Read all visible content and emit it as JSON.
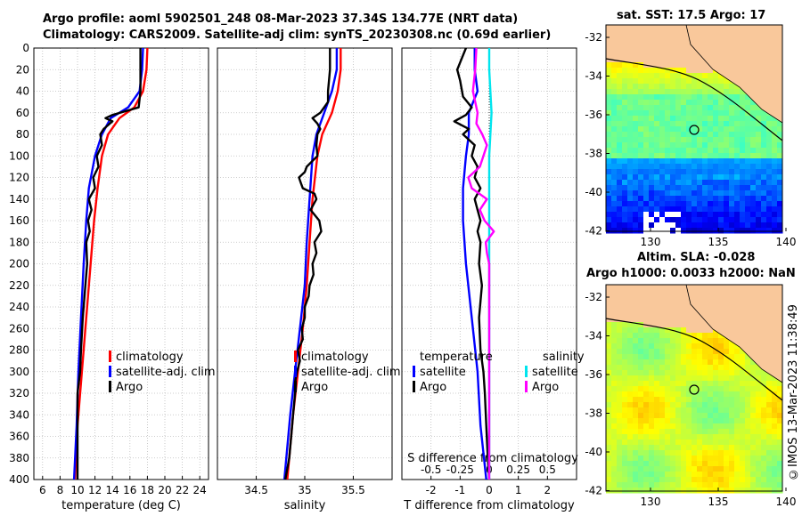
{
  "header": {
    "line1": "Argo profile: aoml 5902501_248 08-Mar-2023 37.34S 134.77E (NRT data)",
    "line2": "Climatology: CARS2009. Satellite-adj clim: synTS_20230308.nc (0.69d earlier)"
  },
  "maps": {
    "sst_title": "sat. SST: 17.5 Argo: 17",
    "sla_title": "Altim. SLA: -0.028",
    "sla_subtitle": "Argo h1000: 0.0033 h2000: NaN",
    "ylabels": [
      "-32",
      "-34",
      "-36",
      "-38",
      "-40",
      "-42"
    ],
    "xlabels": [
      "130",
      "135",
      "140"
    ]
  },
  "timestamp": "©IMOS 13-Mar-2023 11:38:49",
  "colors": {
    "climatology": "#ff0000",
    "satellite": "#0000ff",
    "argo": "#000000",
    "salinity_satellite": "#00e5ee",
    "salinity_argo": "#ff00ff",
    "land": "#f9c89b"
  },
  "chart_data": [
    {
      "type": "line",
      "panel": "temperature",
      "xlabel": "temperature (deg C)",
      "ylabel": "",
      "xlim": [
        5,
        25
      ],
      "ylim": [
        400,
        0
      ],
      "xticks": [
        "6",
        "8",
        "10",
        "12",
        "14",
        "16",
        "18",
        "20",
        "22",
        "24"
      ],
      "yticks": [
        "0",
        "20",
        "40",
        "60",
        "80",
        "100",
        "120",
        "140",
        "160",
        "180",
        "200",
        "220",
        "240",
        "260",
        "280",
        "300",
        "320",
        "340",
        "360",
        "380",
        "400"
      ],
      "legend": [
        "climatology",
        "satellite-adj. clim",
        "Argo"
      ],
      "legend_position": "right",
      "series": [
        {
          "name": "climatology",
          "depth": [
            0,
            20,
            40,
            55,
            65,
            80,
            100,
            130,
            160,
            200,
            250,
            300,
            350,
            400
          ],
          "values": [
            18.0,
            17.9,
            17.5,
            16.5,
            14.8,
            13.5,
            12.8,
            12.3,
            11.9,
            11.5,
            11.0,
            10.5,
            10.0,
            9.7
          ]
        },
        {
          "name": "satellite-adj. clim",
          "depth": [
            0,
            20,
            40,
            55,
            65,
            80,
            100,
            130,
            160,
            200,
            250,
            300,
            350,
            400
          ],
          "values": [
            17.5,
            17.4,
            17.1,
            15.8,
            13.8,
            12.8,
            12.0,
            11.3,
            11.0,
            10.7,
            10.4,
            10.1,
            9.9,
            9.6
          ]
        },
        {
          "name": "Argo",
          "depth": [
            0,
            20,
            40,
            55,
            62,
            65,
            68,
            75,
            80,
            90,
            100,
            110,
            120,
            130,
            140,
            150,
            160,
            170,
            180,
            200,
            220,
            250,
            280,
            300,
            320,
            350,
            380,
            400
          ],
          "values": [
            17.2,
            17.2,
            17.2,
            17.0,
            14.0,
            13.2,
            14.0,
            13.0,
            12.6,
            12.8,
            12.2,
            12.4,
            11.8,
            12.0,
            11.3,
            11.6,
            11.2,
            11.4,
            11.0,
            11.1,
            10.9,
            10.6,
            10.4,
            10.3,
            10.0,
            10.0,
            10.0,
            10.0
          ]
        }
      ]
    },
    {
      "type": "line",
      "panel": "salinity",
      "xlabel": "salinity",
      "ylabel": "",
      "xlim": [
        34.1,
        35.9
      ],
      "ylim": [
        400,
        0
      ],
      "xticks": [
        "34.5",
        "35",
        "35.5"
      ],
      "legend": [
        "climatology",
        "satellite-adj. clim",
        "Argo"
      ],
      "legend_position": "right",
      "series": [
        {
          "name": "climatology",
          "depth": [
            0,
            20,
            40,
            60,
            80,
            100,
            140,
            180,
            220,
            260,
            300,
            340,
            400
          ],
          "values": [
            35.37,
            35.37,
            35.34,
            35.28,
            35.18,
            35.13,
            35.08,
            35.05,
            35.02,
            34.98,
            34.93,
            34.88,
            34.82
          ]
        },
        {
          "name": "satellite-adj. clim",
          "depth": [
            0,
            20,
            40,
            60,
            80,
            100,
            140,
            180,
            220,
            260,
            300,
            340,
            400
          ],
          "values": [
            35.33,
            35.33,
            35.28,
            35.2,
            35.12,
            35.08,
            35.05,
            35.02,
            35.0,
            34.95,
            34.9,
            34.85,
            34.79
          ]
        },
        {
          "name": "Argo",
          "depth": [
            0,
            20,
            40,
            50,
            60,
            65,
            70,
            75,
            80,
            90,
            100,
            110,
            115,
            120,
            125,
            130,
            135,
            140,
            150,
            160,
            170,
            180,
            190,
            200,
            210,
            220,
            230,
            240,
            250,
            260,
            270,
            280,
            290,
            300,
            310,
            320,
            340,
            360,
            380,
            400
          ],
          "values": [
            35.26,
            35.26,
            35.24,
            35.24,
            35.16,
            35.08,
            35.13,
            35.16,
            35.13,
            35.12,
            35.13,
            35.02,
            35.0,
            34.94,
            34.96,
            34.98,
            35.1,
            35.12,
            35.06,
            35.15,
            35.17,
            35.1,
            35.12,
            35.08,
            35.09,
            35.05,
            35.04,
            35.0,
            35.0,
            34.97,
            34.98,
            34.93,
            34.95,
            34.92,
            34.9,
            34.9,
            34.88,
            34.86,
            34.84,
            34.8
          ]
        }
      ]
    },
    {
      "type": "line",
      "panel": "difference",
      "xlabel": "T difference from climatology",
      "top_xlabel": "S difference from climatology",
      "ylabel": "",
      "xlim": [
        -3,
        3
      ],
      "ylim": [
        400,
        0
      ],
      "xticks": [
        "-2",
        "-1",
        "0",
        "1",
        "2"
      ],
      "top_xticks": [
        "-0.5",
        "-0.25",
        "0",
        "0.25",
        "0.5"
      ],
      "legend": [
        "temperature",
        "satellite",
        "Argo",
        "salinity",
        "satellite",
        "Argo"
      ],
      "legend_position": "right",
      "series": [
        {
          "name": "T satellite",
          "depth": [
            0,
            20,
            40,
            60,
            80,
            100,
            130,
            160,
            200,
            250,
            300,
            350,
            400
          ],
          "values": [
            -0.5,
            -0.5,
            -0.4,
            -0.7,
            -0.7,
            -0.8,
            -0.9,
            -0.9,
            -0.8,
            -0.6,
            -0.4,
            -0.3,
            -0.1
          ]
        },
        {
          "name": "T Argo",
          "depth": [
            0,
            20,
            30,
            45,
            55,
            62,
            68,
            75,
            80,
            90,
            100,
            110,
            120,
            130,
            140,
            150,
            160,
            170,
            180,
            200,
            220,
            250,
            280,
            300,
            320,
            350,
            380,
            400
          ],
          "values": [
            -0.8,
            -1.1,
            -1.0,
            -0.9,
            -0.6,
            -0.8,
            -1.2,
            -0.7,
            -0.9,
            -0.5,
            -0.6,
            -0.4,
            -0.5,
            -0.3,
            -0.5,
            -0.4,
            -0.3,
            -0.4,
            -0.3,
            -0.35,
            -0.25,
            -0.35,
            -0.3,
            -0.2,
            -0.15,
            -0.1,
            -0.05,
            0.0
          ]
        },
        {
          "name": "S satellite",
          "depth": [
            0,
            20,
            40,
            60,
            80,
            100,
            150,
            200,
            250,
            300,
            350,
            400
          ],
          "values": [
            0.0,
            0.0,
            0.01,
            0.02,
            0.01,
            0.0,
            0.0,
            0.0,
            0.0,
            0.0,
            0.0,
            0.0
          ]
        },
        {
          "name": "S Argo",
          "depth": [
            0,
            20,
            40,
            60,
            70,
            80,
            90,
            100,
            110,
            120,
            130,
            140,
            150,
            160,
            170,
            180,
            190,
            200,
            250,
            300,
            350,
            400
          ],
          "values": [
            -0.11,
            -0.12,
            -0.14,
            -0.1,
            -0.11,
            -0.06,
            -0.02,
            -0.05,
            -0.08,
            -0.18,
            -0.15,
            -0.02,
            -0.08,
            -0.04,
            0.04,
            -0.03,
            -0.02,
            0.0,
            0.0,
            0.0,
            0.0,
            0.0
          ]
        }
      ]
    }
  ]
}
